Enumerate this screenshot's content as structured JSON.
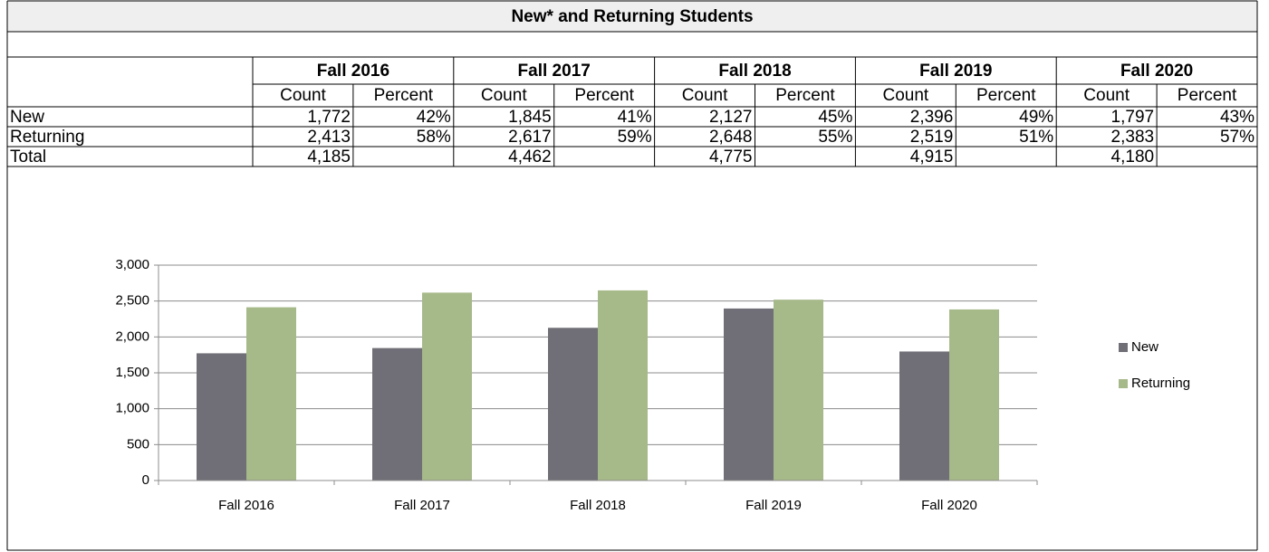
{
  "title": "New* and Returning Students",
  "table": {
    "years": [
      "Fall 2016",
      "Fall 2017",
      "Fall 2018",
      "Fall 2019",
      "Fall 2020"
    ],
    "subheaders": [
      "Count",
      "Percent"
    ],
    "rows": [
      {
        "label": "New",
        "counts": [
          "1,772",
          "1,845",
          "2,127",
          "2,396",
          "1,797"
        ],
        "percents": [
          "42%",
          "41%",
          "45%",
          "49%",
          "43%"
        ]
      },
      {
        "label": "Returning",
        "counts": [
          "2,413",
          "2,617",
          "2,648",
          "2,519",
          "2,383"
        ],
        "percents": [
          "58%",
          "59%",
          "55%",
          "51%",
          "57%"
        ]
      },
      {
        "label": "Total",
        "counts": [
          "4,185",
          "4,462",
          "4,775",
          "4,915",
          "4,180"
        ]
      }
    ]
  },
  "chart_data": {
    "type": "bar",
    "categories": [
      "Fall 2016",
      "Fall 2017",
      "Fall 2018",
      "Fall 2019",
      "Fall 2020"
    ],
    "series": [
      {
        "name": "New",
        "color": "#706f77",
        "values": [
          1772,
          1845,
          2127,
          2396,
          1797
        ]
      },
      {
        "name": "Returning",
        "color": "#a6b989",
        "values": [
          2413,
          2617,
          2648,
          2519,
          2383
        ]
      }
    ],
    "ylim": [
      0,
      3000
    ],
    "yticks": [
      0,
      500,
      {
        "value": 1000,
        "label": "1,000"
      },
      {
        "value": 1500,
        "label": "1,500"
      },
      {
        "value": 2000,
        "label": "2,000"
      },
      {
        "value": 2500,
        "label": "2,500"
      },
      {
        "value": 3000,
        "label": "3,000"
      }
    ],
    "grid": true,
    "legend": "right"
  }
}
